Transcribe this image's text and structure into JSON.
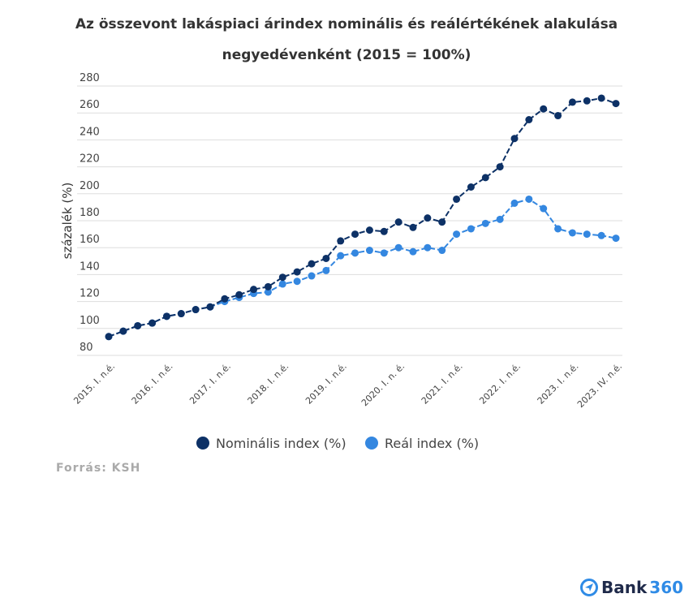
{
  "title_line1": "Az összevont lakáspiaci árindex nominális és reálértékének alakulása",
  "title_line2": "negyedévenként (2015 = 100%)",
  "source": "Forrás: KSH",
  "logo": {
    "text": "Bank",
    "number": "360"
  },
  "colors": {
    "nominal": "#0d3166",
    "real": "#3487e0",
    "grid": "#dddddd"
  },
  "chart_data": {
    "type": "line",
    "title": "Az összevont lakáspiaci árindex nominális és reálértékének alakulása negyedévenként (2015 = 100%)",
    "xlabel": "",
    "ylabel": "százalék (%)",
    "ylim": [
      80,
      280
    ],
    "yticks": [
      80,
      100,
      120,
      140,
      160,
      180,
      200,
      220,
      240,
      260,
      280
    ],
    "grid": true,
    "legend_position": "bottom-center",
    "x_tick_labels": [
      {
        "index": 0,
        "label": "2015. I. n.é."
      },
      {
        "index": 4,
        "label": "2016. I. n.é."
      },
      {
        "index": 8,
        "label": "2017. I. n.é."
      },
      {
        "index": 12,
        "label": "2018. I. n.é."
      },
      {
        "index": 16,
        "label": "2019. I. n.é."
      },
      {
        "index": 20,
        "label": "2020. I. n. é."
      },
      {
        "index": 24,
        "label": "2021. I. n.é."
      },
      {
        "index": 28,
        "label": "2022. I. n.é."
      },
      {
        "index": 32,
        "label": "2023. I. n.é."
      },
      {
        "index": 35,
        "label": "2023. IV. n.é."
      }
    ],
    "series": [
      {
        "name": "Nominális index (%)",
        "color": "#0d3166",
        "values": [
          94,
          98,
          102,
          104,
          109,
          111,
          114,
          116,
          122,
          125,
          129,
          131,
          138,
          142,
          148,
          152,
          165,
          170,
          173,
          172,
          179,
          175,
          182,
          179,
          196,
          205,
          212,
          220,
          241,
          255,
          263,
          258,
          268,
          269,
          271,
          267
        ]
      },
      {
        "name": "Reál index (%)",
        "color": "#3487e0",
        "values": [
          94,
          98,
          102,
          104,
          109,
          111,
          114,
          116,
          120,
          123,
          126,
          127,
          133,
          135,
          139,
          143,
          154,
          156,
          158,
          156,
          160,
          157,
          160,
          158,
          170,
          174,
          178,
          181,
          193,
          196,
          189,
          174,
          171,
          170,
          169,
          167
        ]
      }
    ]
  }
}
